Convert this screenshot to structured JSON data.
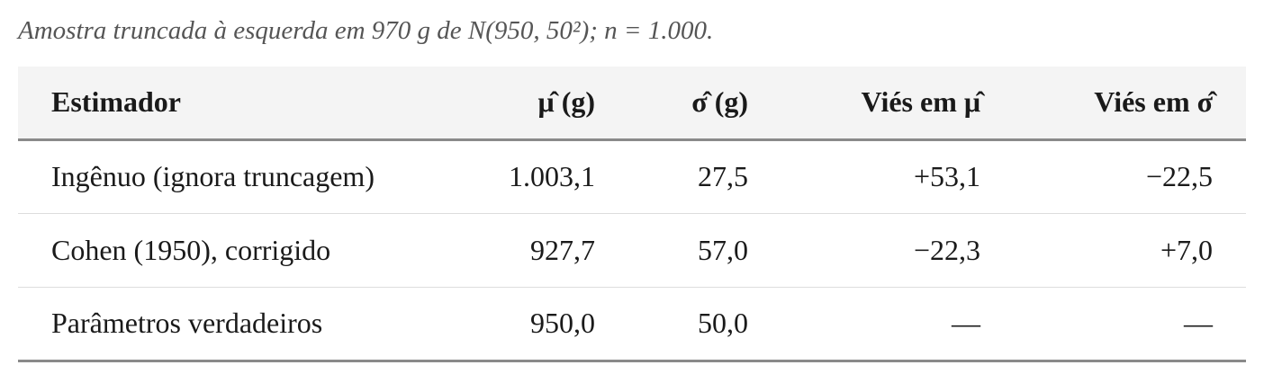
{
  "caption": "Amostra truncada à esquerda em 970 g de N(950, 50²); n = 1.000.",
  "table": {
    "header": [
      "Estimador",
      "μ̂ (g)",
      "σ̂ (g)",
      "Viés em μ̂",
      "Viés em σ̂"
    ],
    "rows": [
      [
        "Ingênuo (ignora truncagem)",
        "1.003,1",
        "27,5",
        "+53,1",
        "−22,5"
      ],
      [
        "Cohen (1950), corrigido",
        "927,7",
        "57,0",
        "−22,3",
        "+7,0"
      ],
      [
        "Parâmetros verdadeiros",
        "950,0",
        "50,0",
        "—",
        "—"
      ]
    ]
  }
}
